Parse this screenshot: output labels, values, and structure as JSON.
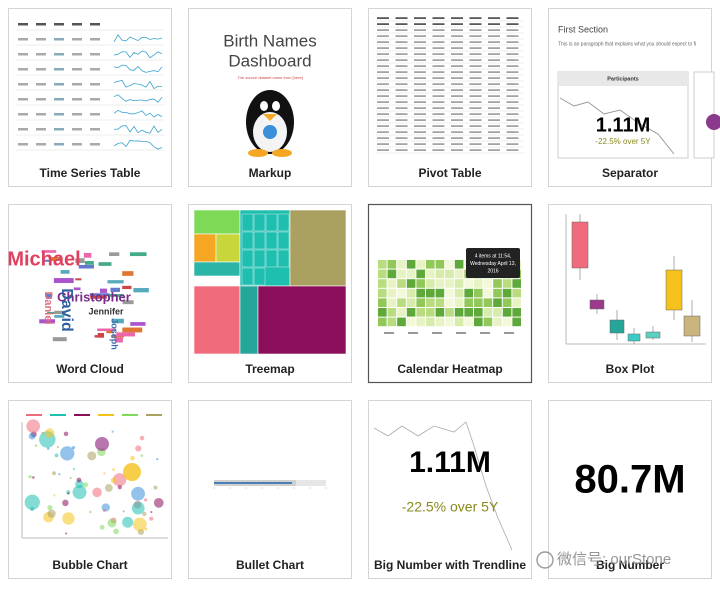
{
  "gallery": {
    "cards": [
      {
        "label": "Time Series Table"
      },
      {
        "label": "Markup",
        "texts": [
          "Birth Names",
          "Dashboard",
          "The source dataset came from [here]"
        ]
      },
      {
        "label": "Pivot Table"
      },
      {
        "label": "Separator",
        "texts": [
          "First Section",
          "This is an paragraph that explains what you should expect to fi",
          "Participants",
          "1.11M",
          "-22.5% over 5Y"
        ]
      },
      {
        "label": "Word Cloud",
        "texts": [
          "Michael",
          "Christopher",
          "David",
          "Jennifer",
          "Daniel",
          "Joseph"
        ]
      },
      {
        "label": "Treemap"
      },
      {
        "label": "Calendar Heatmap",
        "texts": [
          "4 items at 11:54,",
          "Wednesday April 13,",
          "2016"
        ]
      },
      {
        "label": "Box Plot"
      },
      {
        "label": "Bubble Chart"
      },
      {
        "label": "Bullet Chart"
      },
      {
        "label": "Big Number with Trendline",
        "texts": [
          "1.11M",
          "-22.5% over 5Y"
        ]
      },
      {
        "label": "Big Number",
        "texts": [
          "80.7M"
        ]
      }
    ],
    "watermark": "微信号: ourStone"
  }
}
